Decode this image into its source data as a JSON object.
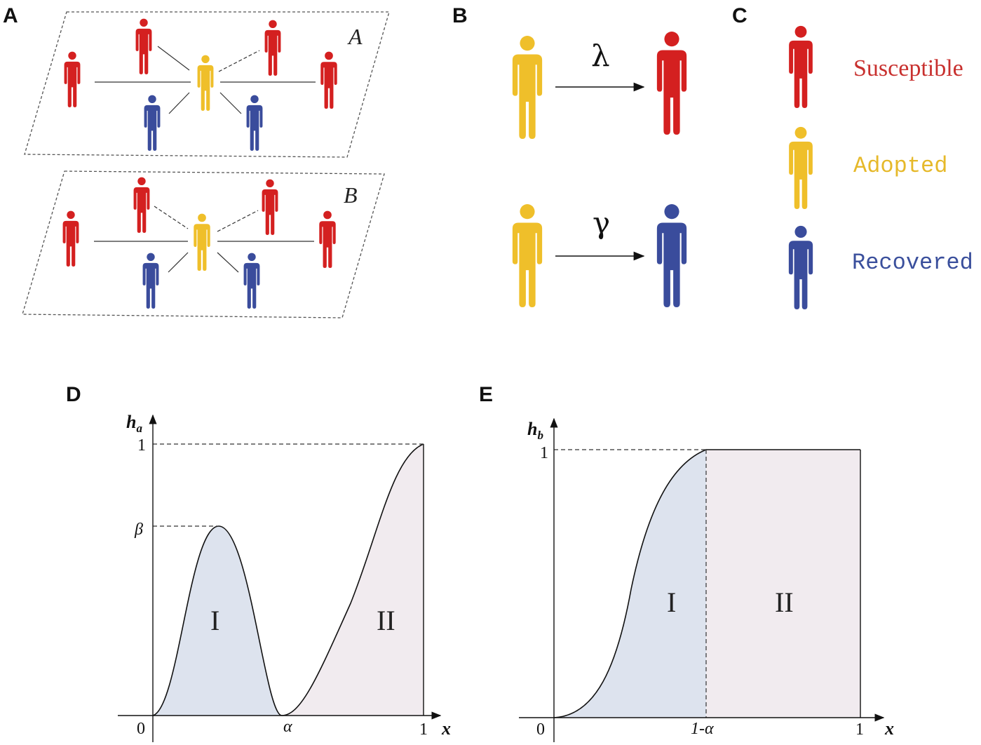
{
  "panels": {
    "a": "A",
    "b": "B",
    "c": "C",
    "d": "D",
    "e": "E"
  },
  "layers": {
    "top": "A",
    "bottom": "B"
  },
  "transitions": {
    "lambda": "λ",
    "gamma": "γ"
  },
  "legend": [
    {
      "label": "Susceptible",
      "color": "#d42a2a"
    },
    {
      "label": "Adopted",
      "color": "#e8be2c"
    },
    {
      "label": "Recovered",
      "color": "#3a4f9c"
    }
  ],
  "colors": {
    "susceptible": "#d42020",
    "adopted": "#efbf2a",
    "recovered": "#3a4c9c",
    "region_one": "#dde3ee",
    "region_two": "#f1ebef"
  },
  "graph_d": {
    "ylabel_main": "h",
    "ylabel_sub": "a",
    "xlabel": "x",
    "ytick_top": "1",
    "ytick_beta": "β",
    "xtick_origin": "0",
    "xtick_alpha": "α",
    "xtick_one": "1",
    "region_one": "I",
    "region_two": "II"
  },
  "graph_e": {
    "ylabel_main": "h",
    "ylabel_sub": "b",
    "xlabel": "x",
    "ytick_top": "1",
    "xtick_origin": "0",
    "xtick_mid": "1-α",
    "xtick_one": "1",
    "region_one": "I",
    "region_two": "II"
  }
}
